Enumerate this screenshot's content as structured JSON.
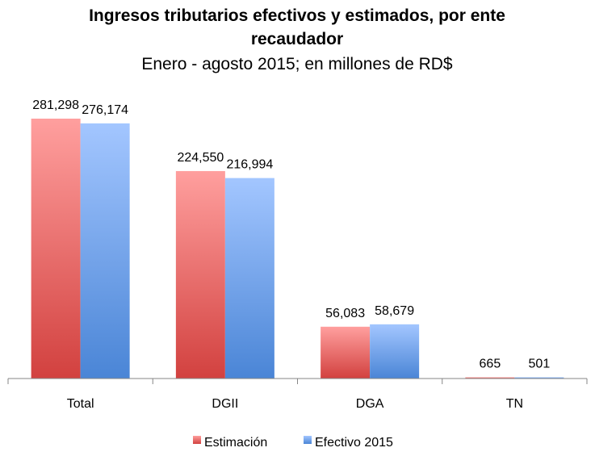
{
  "chart_data": {
    "type": "bar",
    "title_line1": "Ingresos tributarios efectivos y estimados, por ente",
    "title_line2": "recaudador",
    "subtitle": "Enero - agosto 2015; en millones de RD$",
    "xlabel": "",
    "ylabel": "",
    "categories": [
      "Total",
      "DGII",
      "DGA",
      "TN"
    ],
    "series": [
      {
        "name": "Estimación",
        "values": [
          281298,
          224550,
          56083,
          665
        ],
        "labels": [
          "281,298",
          "224,550",
          "56,083",
          "665"
        ],
        "color": "#e8504f"
      },
      {
        "name": "Efectivo 2015",
        "values": [
          276174,
          216994,
          58679,
          501
        ],
        "labels": [
          "276,174",
          "216,994",
          "58,679",
          "501"
        ],
        "color": "#5b9bd5"
      }
    ],
    "ylim": [
      0,
      281298
    ],
    "grid": false,
    "legend_position": "bottom"
  }
}
